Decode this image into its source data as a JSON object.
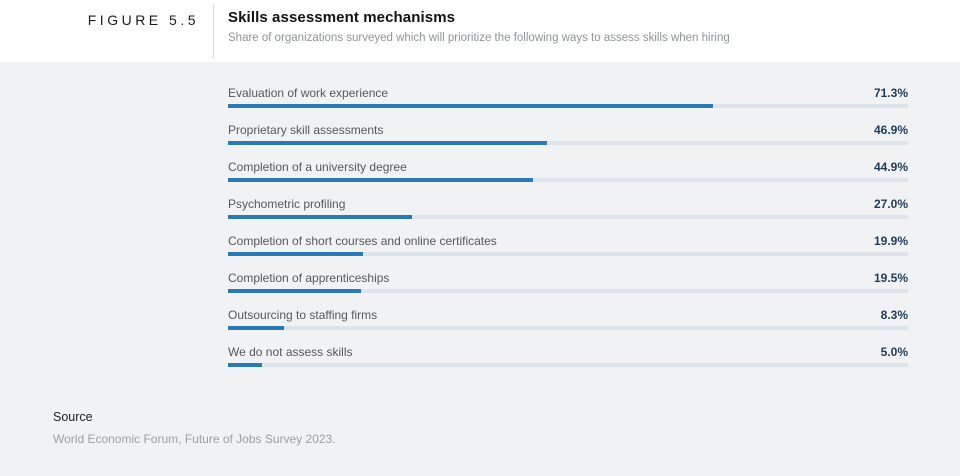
{
  "header": {
    "figure_label": "FIGURE 5.5",
    "title": "Skills assessment mechanisms",
    "subtitle": "Share of organizations surveyed which will prioritize the following ways to assess skills when hiring"
  },
  "chart_data": {
    "type": "bar",
    "orientation": "horizontal",
    "title": "Skills assessment mechanisms",
    "categories": [
      "Evaluation of work experience",
      "Proprietary skill assessments",
      "Completion of a university degree",
      "Psychometric profiling",
      "Completion of short courses and online certificates",
      "Completion of apprenticeships",
      "Outsourcing to staffing firms",
      "We do not assess skills"
    ],
    "values": [
      71.3,
      46.9,
      44.9,
      27.0,
      19.9,
      19.5,
      8.3,
      5.0
    ],
    "value_labels": [
      "71.3%",
      "46.9%",
      "44.9%",
      "27.0%",
      "19.9%",
      "19.5%",
      "8.3%",
      "5.0%"
    ],
    "xlim": [
      0,
      100
    ],
    "grid": false,
    "legend": false,
    "bar_color": "#2a7ab5",
    "track_color": "#dde4ec",
    "value_text_color": "#1e3c5a",
    "label_text_color": "#55585c"
  },
  "source": {
    "label": "Source",
    "text": "World Economic Forum, Future of Jobs Survey 2023."
  },
  "colors": {
    "header_background": "#ffffff",
    "chart_background": "#f1f2f4",
    "divider": "#d7d7d7"
  }
}
